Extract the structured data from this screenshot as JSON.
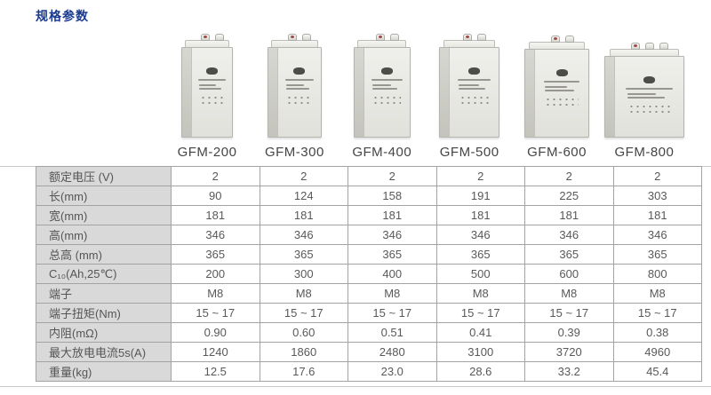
{
  "page": {
    "title": "规格参数"
  },
  "colors": {
    "title_blue": "#1a3a8f",
    "table_label_bg": "#d9d9d9",
    "table_border": "#a3a3a3",
    "text_gray": "#595959"
  },
  "products": [
    {
      "name": "GFM-200"
    },
    {
      "name": "GFM-300"
    },
    {
      "name": "GFM-400"
    },
    {
      "name": "GFM-500"
    },
    {
      "name": "GFM-600"
    },
    {
      "name": "GFM-800"
    }
  ],
  "table": {
    "rows": [
      {
        "label": "额定电压 (V)",
        "values": [
          "2",
          "2",
          "2",
          "2",
          "2",
          "2"
        ]
      },
      {
        "label": "长(mm)",
        "values": [
          "90",
          "124",
          "158",
          "191",
          "225",
          "303"
        ]
      },
      {
        "label": "宽(mm)",
        "values": [
          "181",
          "181",
          "181",
          "181",
          "181",
          "181"
        ]
      },
      {
        "label": "高(mm)",
        "values": [
          "346",
          "346",
          "346",
          "346",
          "346",
          "346"
        ]
      },
      {
        "label": "总高 (mm)",
        "values": [
          "365",
          "365",
          "365",
          "365",
          "365",
          "365"
        ]
      },
      {
        "label": "C₁₀(Ah,25℃)",
        "values": [
          "200",
          "300",
          "400",
          "500",
          "600",
          "800"
        ]
      },
      {
        "label": "端子",
        "values": [
          "M8",
          "M8",
          "M8",
          "M8",
          "M8",
          "M8"
        ]
      },
      {
        "label": "端子扭矩(Nm)",
        "values": [
          "15 ~ 17",
          "15 ~ 17",
          "15 ~ 17",
          "15 ~ 17",
          "15 ~ 17",
          "15 ~ 17"
        ]
      },
      {
        "label": "内阻(mΩ)",
        "values": [
          "0.90",
          "0.60",
          "0.51",
          "0.41",
          "0.39",
          "0.38"
        ]
      },
      {
        "label": "最大放电电流5s(A)",
        "values": [
          "1240",
          "1860",
          "2480",
          "3100",
          "3720",
          "4960"
        ]
      },
      {
        "label": "重量(kg)",
        "values": [
          "12.5",
          "17.6",
          "23.0",
          "28.6",
          "33.2",
          "45.4"
        ]
      }
    ]
  }
}
